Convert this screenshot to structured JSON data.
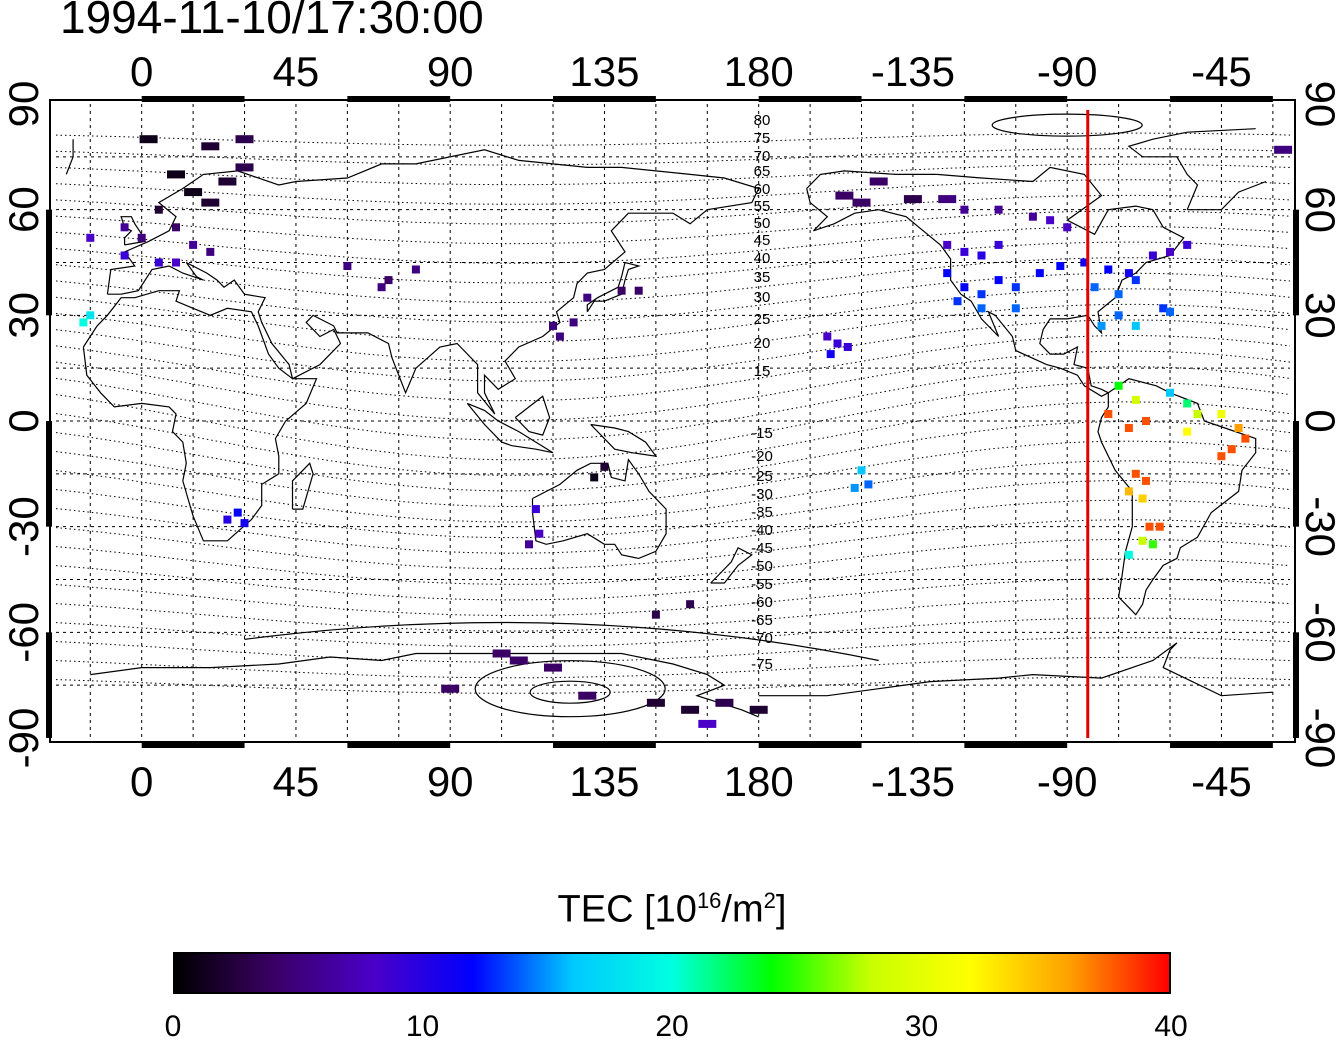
{
  "header": {
    "timestamp": "1994-11-10/17:30:00"
  },
  "map": {
    "top_lon_ticks": [
      "0",
      "45",
      "90",
      "135",
      "180",
      "-135",
      "-90",
      "-45"
    ],
    "bottom_lon_ticks": [
      "0",
      "45",
      "90",
      "135",
      "180",
      "-135",
      "-90",
      "-45"
    ],
    "left_lat_ticks": [
      "90",
      "60",
      "30",
      "0",
      "-30",
      "-60",
      "-90"
    ],
    "right_lat_ticks": [
      "90",
      "60",
      "30",
      "0",
      "-30",
      "-60",
      "-90"
    ],
    "contour_labels": [
      "80",
      "75",
      "70",
      "65",
      "60",
      "55",
      "50",
      "45",
      "40",
      "35",
      "30",
      "25",
      "20",
      "15",
      "-15",
      "-20",
      "-25",
      "-30",
      "-35",
      "-40",
      "-45",
      "-50",
      "-55",
      "-60",
      "-65",
      "-70",
      "-75"
    ],
    "meridian_lon": -84,
    "meridian_color": "#e00000"
  },
  "colorbar": {
    "title_main": "TEC  [10",
    "title_sup": "16",
    "title_mid": "/m",
    "title_sup2": "2",
    "title_end": "]",
    "ticks": [
      "0",
      "10",
      "20",
      "30",
      "40"
    ],
    "range": [
      0,
      40
    ],
    "colors": [
      "#000000",
      "#3b0066",
      "#4b00c8",
      "#0000ff",
      "#00c8ff",
      "#00ffe0",
      "#00ff00",
      "#c8ff00",
      "#ffff00",
      "#ffa000",
      "#ff0000"
    ]
  },
  "chart_data": {
    "type": "heatmap",
    "projection": "equirectangular",
    "lon_range": [
      -25,
      335
    ],
    "lat_range": [
      -90,
      90
    ],
    "value_units": "TEC [10^16/m^2]",
    "observations": [
      {
        "lon": 2,
        "lat": 80,
        "tec": 1
      },
      {
        "lon": 20,
        "lat": 78,
        "tec": 2
      },
      {
        "lon": 30,
        "lat": 80,
        "tec": 3
      },
      {
        "lon": 10,
        "lat": 70,
        "tec": 1
      },
      {
        "lon": 15,
        "lat": 65,
        "tec": 1
      },
      {
        "lon": 20,
        "lat": 62,
        "tec": 2
      },
      {
        "lon": 25,
        "lat": 68,
        "tec": 2
      },
      {
        "lon": 30,
        "lat": 72,
        "tec": 3
      },
      {
        "lon": 5,
        "lat": 60,
        "tec": 2
      },
      {
        "lon": 10,
        "lat": 55,
        "tec": 4
      },
      {
        "lon": 0,
        "lat": 52,
        "tec": 5
      },
      {
        "lon": -5,
        "lat": 55,
        "tec": 6
      },
      {
        "lon": 15,
        "lat": 50,
        "tec": 6
      },
      {
        "lon": 20,
        "lat": 48,
        "tec": 5
      },
      {
        "lon": 10,
        "lat": 45,
        "tec": 8
      },
      {
        "lon": 5,
        "lat": 45,
        "tec": 9
      },
      {
        "lon": -5,
        "lat": 47,
        "tec": 9
      },
      {
        "lon": -15,
        "lat": 52,
        "tec": 8
      },
      {
        "lon": -17,
        "lat": 28,
        "tec": 20
      },
      {
        "lon": -15,
        "lat": 30,
        "tec": 18
      },
      {
        "lon": 60,
        "lat": 44,
        "tec": 5
      },
      {
        "lon": 70,
        "lat": 38,
        "tec": 5
      },
      {
        "lon": 72,
        "lat": 40,
        "tec": 4
      },
      {
        "lon": 80,
        "lat": 43,
        "tec": 5
      },
      {
        "lon": 130,
        "lat": 35,
        "tec": 5
      },
      {
        "lon": 140,
        "lat": 37,
        "tec": 4
      },
      {
        "lon": 145,
        "lat": 37,
        "tec": 4
      },
      {
        "lon": 120,
        "lat": 27,
        "tec": 5
      },
      {
        "lon": 122,
        "lat": 24,
        "tec": 5
      },
      {
        "lon": 126,
        "lat": 28,
        "tec": 5
      },
      {
        "lon": 135,
        "lat": -13,
        "tec": 2
      },
      {
        "lon": 132,
        "lat": -16,
        "tec": 1
      },
      {
        "lon": 25,
        "lat": -28,
        "tec": 10
      },
      {
        "lon": 30,
        "lat": -29,
        "tec": 11
      },
      {
        "lon": 28,
        "lat": -26,
        "tec": 12
      },
      {
        "lon": 115,
        "lat": -25,
        "tec": 9
      },
      {
        "lon": 116,
        "lat": -32,
        "tec": 8
      },
      {
        "lon": 113,
        "lat": -35,
        "tec": 6
      },
      {
        "lon": 150,
        "lat": -55,
        "tec": 3
      },
      {
        "lon": 160,
        "lat": -52,
        "tec": 3
      },
      {
        "lon": 105,
        "lat": -66,
        "tec": 4
      },
      {
        "lon": 110,
        "lat": -68,
        "tec": 4
      },
      {
        "lon": 120,
        "lat": -70,
        "tec": 4
      },
      {
        "lon": 130,
        "lat": -78,
        "tec": 4
      },
      {
        "lon": 90,
        "lat": -76,
        "tec": 4
      },
      {
        "lon": 150,
        "lat": -80,
        "tec": 2
      },
      {
        "lon": 160,
        "lat": -82,
        "tec": 2
      },
      {
        "lon": 170,
        "lat": -80,
        "tec": 3
      },
      {
        "lon": 180,
        "lat": -82,
        "tec": 2
      },
      {
        "lon": 165,
        "lat": -86,
        "tec": 8
      },
      {
        "lon": 200,
        "lat": 24,
        "tec": 8
      },
      {
        "lon": 203,
        "lat": 22,
        "tec": 9
      },
      {
        "lon": 201,
        "lat": 19,
        "tec": 11
      },
      {
        "lon": 206,
        "lat": 21,
        "tec": 9
      },
      {
        "lon": 210,
        "lat": -14,
        "tec": 16
      },
      {
        "lon": 212,
        "lat": -18,
        "tec": 14
      },
      {
        "lon": 208,
        "lat": -19,
        "tec": 15
      },
      {
        "lon": 205,
        "lat": 64,
        "tec": 4
      },
      {
        "lon": 210,
        "lat": 62,
        "tec": 4
      },
      {
        "lon": 215,
        "lat": 68,
        "tec": 4
      },
      {
        "lon": 225,
        "lat": 63,
        "tec": 3
      },
      {
        "lon": 235,
        "lat": 63,
        "tec": 5
      },
      {
        "lon": 240,
        "lat": 60,
        "tec": 6
      },
      {
        "lon": 250,
        "lat": 60,
        "tec": 6
      },
      {
        "lon": 260,
        "lat": 58,
        "tec": 6
      },
      {
        "lon": 265,
        "lat": 57,
        "tec": 8
      },
      {
        "lon": 270,
        "lat": 55,
        "tec": 8
      },
      {
        "lon": 235,
        "lat": 50,
        "tec": 8
      },
      {
        "lon": 240,
        "lat": 48,
        "tec": 9
      },
      {
        "lon": 245,
        "lat": 47,
        "tec": 10
      },
      {
        "lon": 250,
        "lat": 50,
        "tec": 9
      },
      {
        "lon": 235,
        "lat": 42,
        "tec": 12
      },
      {
        "lon": 240,
        "lat": 38,
        "tec": 12
      },
      {
        "lon": 245,
        "lat": 36,
        "tec": 13
      },
      {
        "lon": 250,
        "lat": 40,
        "tec": 12
      },
      {
        "lon": 255,
        "lat": 38,
        "tec": 13
      },
      {
        "lon": 238,
        "lat": 34,
        "tec": 13
      },
      {
        "lon": 245,
        "lat": 32,
        "tec": 14
      },
      {
        "lon": 255,
        "lat": 32,
        "tec": 14
      },
      {
        "lon": 262,
        "lat": 42,
        "tec": 12
      },
      {
        "lon": 268,
        "lat": 44,
        "tec": 12
      },
      {
        "lon": 275,
        "lat": 45,
        "tec": 11
      },
      {
        "lon": 282,
        "lat": 43,
        "tec": 12
      },
      {
        "lon": 288,
        "lat": 42,
        "tec": 11
      },
      {
        "lon": 278,
        "lat": 38,
        "tec": 14
      },
      {
        "lon": 285,
        "lat": 36,
        "tec": 14
      },
      {
        "lon": 290,
        "lat": 40,
        "tec": 13
      },
      {
        "lon": 295,
        "lat": 47,
        "tec": 9
      },
      {
        "lon": 300,
        "lat": 48,
        "tec": 8
      },
      {
        "lon": 305,
        "lat": 50,
        "tec": 9
      },
      {
        "lon": 285,
        "lat": 30,
        "tec": 14
      },
      {
        "lon": 290,
        "lat": 27,
        "tec": 16
      },
      {
        "lon": 298,
        "lat": 32,
        "tec": 13
      },
      {
        "lon": 300,
        "lat": 31,
        "tec": 14
      },
      {
        "lon": 280,
        "lat": 27,
        "tec": 15
      },
      {
        "lon": 285,
        "lat": 10,
        "tec": 24
      },
      {
        "lon": 290,
        "lat": 6,
        "tec": 29
      },
      {
        "lon": 282,
        "lat": 2,
        "tec": 38
      },
      {
        "lon": 288,
        "lat": -2,
        "tec": 38
      },
      {
        "lon": 293,
        "lat": 0,
        "tec": 38
      },
      {
        "lon": 300,
        "lat": 8,
        "tec": 16
      },
      {
        "lon": 305,
        "lat": 5,
        "tec": 22
      },
      {
        "lon": 308,
        "lat": 2,
        "tec": 28
      },
      {
        "lon": 305,
        "lat": -3,
        "tec": 32
      },
      {
        "lon": 315,
        "lat": 2,
        "tec": 31
      },
      {
        "lon": 320,
        "lat": -2,
        "tec": 36
      },
      {
        "lon": 322,
        "lat": -5,
        "tec": 38
      },
      {
        "lon": 318,
        "lat": -8,
        "tec": 38
      },
      {
        "lon": 315,
        "lat": -10,
        "tec": 38
      },
      {
        "lon": 290,
        "lat": -15,
        "tec": 38
      },
      {
        "lon": 293,
        "lat": -17,
        "tec": 38
      },
      {
        "lon": 288,
        "lat": -20,
        "tec": 35
      },
      {
        "lon": 292,
        "lat": -22,
        "tec": 34
      },
      {
        "lon": 294,
        "lat": -30,
        "tec": 38
      },
      {
        "lon": 297,
        "lat": -30,
        "tec": 38
      },
      {
        "lon": 292,
        "lat": -34,
        "tec": 28
      },
      {
        "lon": 295,
        "lat": -35,
        "tec": 25
      },
      {
        "lon": 288,
        "lat": -38,
        "tec": 20
      },
      {
        "lon": 333,
        "lat": 77,
        "tec": 5
      }
    ]
  }
}
